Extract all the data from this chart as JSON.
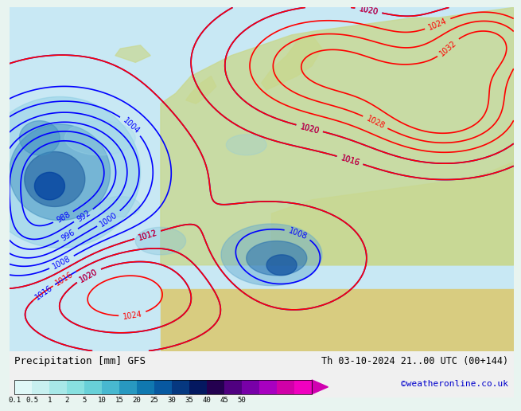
{
  "title_left": "Precipitation [mm] GFS",
  "title_right": "Th 03-10-2024 21..00 UTC (00+144)",
  "credit": "©weatheronline.co.uk",
  "colorbar_labels": [
    "0.1",
    "0.5",
    "1",
    "2",
    "5",
    "10",
    "15",
    "20",
    "25",
    "30",
    "35",
    "40",
    "45",
    "50"
  ],
  "colorbar_colors": [
    "#e0f8f8",
    "#c8f0f0",
    "#a8e8e8",
    "#88e0e0",
    "#68d0d8",
    "#48b8d0",
    "#2898c0",
    "#1078b0",
    "#0858a0",
    "#063880",
    "#041860",
    "#240050",
    "#500080",
    "#7800a8",
    "#a800c0",
    "#d000a8",
    "#f000c0"
  ],
  "bg_color": "#e8f4f0",
  "bottom_bar_color": "#f0f0f0",
  "levels_blue": [
    988,
    992,
    996,
    1000,
    1004,
    1008,
    1012,
    1016,
    1020
  ],
  "levels_red": [
    1012,
    1016,
    1020,
    1024,
    1028,
    1032
  ]
}
